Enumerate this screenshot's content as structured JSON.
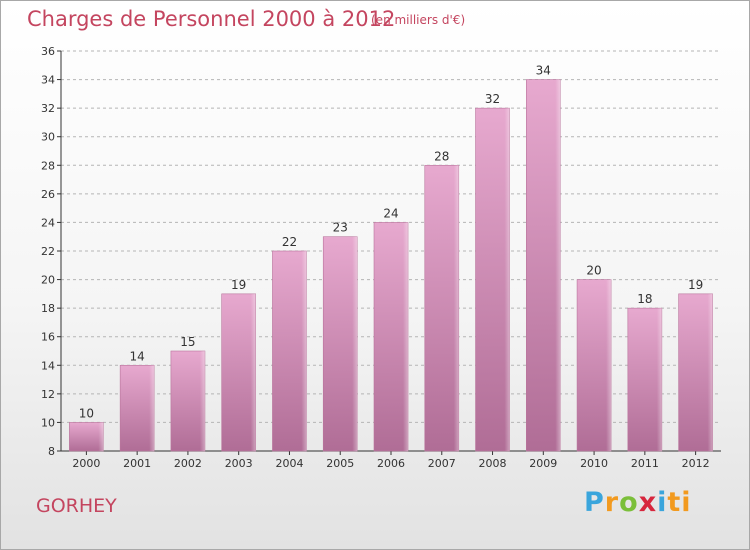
{
  "chart_data": {
    "type": "bar",
    "title": "Charges de Personnel 2000 à 2012",
    "subtitle": "(en milliers d'€)",
    "categories": [
      "2000",
      "2001",
      "2002",
      "2003",
      "2004",
      "2005",
      "2006",
      "2007",
      "2008",
      "2009",
      "2010",
      "2011",
      "2012"
    ],
    "values": [
      10,
      14,
      15,
      19,
      22,
      23,
      24,
      28,
      32,
      34,
      20,
      18,
      19
    ],
    "xlabel": "",
    "ylabel": "",
    "ylim": [
      8,
      36
    ],
    "yticks": [
      8,
      10,
      12,
      14,
      16,
      18,
      20,
      22,
      24,
      26,
      28,
      30,
      32,
      34,
      36
    ],
    "grid": "horizontal-dashed",
    "bar_color": "#d99cc0"
  },
  "commune": "GORHEY",
  "logo": [
    "P",
    "r",
    "o",
    "x",
    "i",
    "ti"
  ]
}
